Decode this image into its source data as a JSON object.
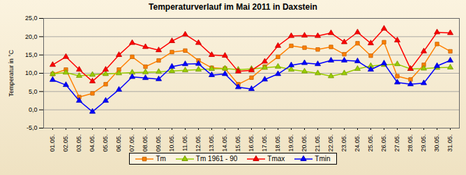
{
  "chart_data": {
    "type": "line",
    "title": "Temperaturverlauf im Mai 2011 in Daxstein",
    "y_label": "Temperatur in °C",
    "categories": [
      "01.05.",
      "02.05.",
      "03.05.",
      "04.05.",
      "05.05.",
      "06.05.",
      "07.05.",
      "08.05.",
      "09.05.",
      "10.05.",
      "11.05.",
      "12.05.",
      "13.05.",
      "14.05.",
      "15.05.",
      "16.05.",
      "17.05.",
      "18.05.",
      "19.05.",
      "20.05.",
      "21.05.",
      "22.05.",
      "23.05.",
      "24.05.",
      "25.05.",
      "26.05.",
      "27.05.",
      "28.05.",
      "29.05.",
      "30.05.",
      "31.05."
    ],
    "series": [
      {
        "name": "Tm",
        "color": "#ff8000",
        "marker": "square",
        "values": [
          9.8,
          11,
          3.5,
          4.5,
          7,
          11,
          14.5,
          11.8,
          13.5,
          15.8,
          16.2,
          13.5,
          11.5,
          11.3,
          7,
          8.8,
          11.8,
          14.5,
          17.5,
          17,
          16.5,
          17.2,
          15.2,
          18.2,
          14.8,
          18.5,
          9.2,
          8.3,
          12.3,
          18,
          16
        ]
      },
      {
        "name": "Tm 1961 - 90",
        "color": "#99cc00",
        "marker": "triangle",
        "values": [
          9.8,
          10.2,
          9.3,
          9.6,
          9.8,
          10,
          10.2,
          10.3,
          10.4,
          10.6,
          10.8,
          11,
          11.2,
          11.3,
          11,
          11.2,
          11.5,
          11.8,
          11,
          10.5,
          10,
          9.2,
          10,
          11.2,
          12,
          12.3,
          12.5,
          11.2,
          11.3,
          11.5,
          11.6
        ]
      },
      {
        "name": "Tmax",
        "color": "#ff0000",
        "marker": "triangle",
        "values": [
          12.3,
          14.5,
          11,
          7.8,
          11,
          15,
          18.3,
          17.2,
          16.3,
          18.8,
          20.6,
          18.3,
          15,
          14.8,
          10.5,
          10.8,
          13.2,
          17.5,
          20.2,
          20.3,
          20.2,
          21,
          18.5,
          21.2,
          18.2,
          22.2,
          19,
          11.2,
          16,
          21.2,
          21
        ]
      },
      {
        "name": "Tmin",
        "color": "#0000ff",
        "marker": "triangle",
        "values": [
          8.2,
          6.8,
          2.5,
          -0.5,
          2.5,
          5.5,
          9,
          8.7,
          8.4,
          11.8,
          12.5,
          12.6,
          9.5,
          9.8,
          6.2,
          5.7,
          8.3,
          9.8,
          12.2,
          12.8,
          12.5,
          13.5,
          13.5,
          13.3,
          11,
          12.7,
          7.5,
          7,
          7.3,
          12,
          13.5
        ]
      }
    ],
    "ylim": [
      -5,
      25
    ],
    "yticks": [
      {
        "value": -5,
        "label": "-5,0"
      },
      {
        "value": 0,
        "label": "0,0"
      },
      {
        "value": 5,
        "label": "5,0"
      },
      {
        "value": 10,
        "label": "10,0"
      },
      {
        "value": 15,
        "label": "15,0"
      },
      {
        "value": 20,
        "label": "20,0"
      },
      {
        "value": 25,
        "label": "25,0"
      }
    ],
    "grid": true,
    "legend": "bottom"
  }
}
